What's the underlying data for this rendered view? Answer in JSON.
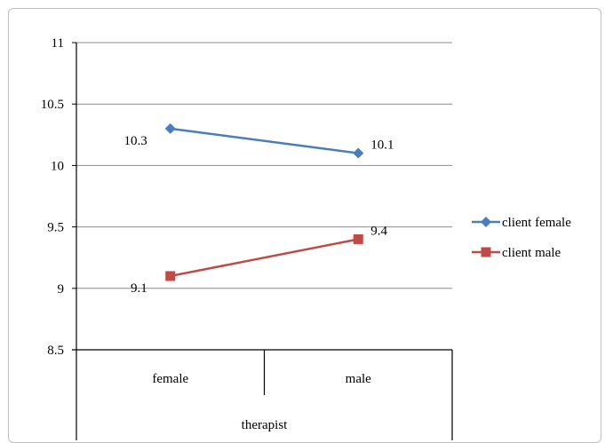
{
  "chart_data": {
    "type": "line",
    "categories": [
      "female",
      "male"
    ],
    "xlabel": "therapist",
    "ylabel": "",
    "title": "",
    "ylim": [
      8.5,
      11
    ],
    "yticks": [
      8.5,
      9,
      9.5,
      10,
      10.5,
      11
    ],
    "y_tick_labels": [
      "8.5",
      "9",
      "9.5",
      "10",
      "10.5",
      "11"
    ],
    "grid": true,
    "legend_position": "right",
    "series": [
      {
        "name": "client female",
        "values": [
          10.3,
          10.1
        ],
        "value_labels": [
          "10.3",
          "10.1"
        ],
        "color": "#4a7ebb",
        "marker": "diamond"
      },
      {
        "name": "client male",
        "values": [
          9.1,
          9.4
        ],
        "value_labels": [
          "9.1",
          "9.4"
        ],
        "color": "#be4b48",
        "marker": "square"
      }
    ]
  }
}
